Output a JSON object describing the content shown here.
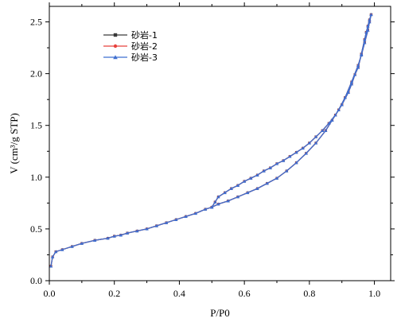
{
  "chart_data": {
    "type": "line",
    "xlabel": "P/P0",
    "ylabel": "V (cm³/g STP)",
    "xlim": [
      0.0,
      1.05
    ],
    "ylim": [
      0.0,
      2.65
    ],
    "xticks": [
      0.0,
      0.2,
      0.4,
      0.6,
      0.8,
      1.0
    ],
    "xtick_labels": [
      "0.0",
      "0.2",
      "0.4",
      "0.6",
      "0.8",
      "1.0"
    ],
    "yticks": [
      0.0,
      0.5,
      1.0,
      1.5,
      2.0,
      2.5
    ],
    "ytick_labels": [
      "0.0",
      "0.5",
      "1.0",
      "1.5",
      "2.0",
      "2.5"
    ],
    "grid": false,
    "legend_position": "top-left",
    "series": [
      {
        "name": "砂岩-1",
        "color": "#3a3a3a",
        "marker": "square",
        "adsorption": {
          "x": [
            0.005,
            0.01,
            0.02,
            0.04,
            0.07,
            0.1,
            0.14,
            0.18,
            0.2,
            0.22,
            0.24,
            0.27,
            0.3,
            0.33,
            0.36,
            0.39,
            0.42,
            0.45,
            0.48,
            0.5,
            0.52,
            0.55,
            0.58,
            0.61,
            0.64,
            0.67,
            0.7,
            0.73,
            0.76,
            0.79,
            0.82,
            0.85,
            0.87,
            0.89,
            0.91,
            0.93,
            0.95,
            0.96,
            0.97,
            0.98,
            0.985,
            0.99
          ],
          "y": [
            0.14,
            0.23,
            0.28,
            0.3,
            0.33,
            0.36,
            0.39,
            0.41,
            0.43,
            0.44,
            0.46,
            0.48,
            0.5,
            0.53,
            0.56,
            0.59,
            0.62,
            0.65,
            0.69,
            0.71,
            0.74,
            0.77,
            0.81,
            0.85,
            0.89,
            0.94,
            0.99,
            1.06,
            1.14,
            1.23,
            1.33,
            1.45,
            1.55,
            1.65,
            1.77,
            1.92,
            2.08,
            2.18,
            2.3,
            2.42,
            2.5,
            2.57
          ]
        },
        "desorption": {
          "x": [
            0.99,
            0.985,
            0.98,
            0.975,
            0.97,
            0.96,
            0.95,
            0.94,
            0.93,
            0.92,
            0.9,
            0.88,
            0.86,
            0.84,
            0.82,
            0.8,
            0.78,
            0.76,
            0.74,
            0.72,
            0.7,
            0.68,
            0.66,
            0.64,
            0.62,
            0.6,
            0.58,
            0.56,
            0.54,
            0.52,
            0.51,
            0.5
          ],
          "y": [
            2.57,
            2.52,
            2.46,
            2.4,
            2.33,
            2.19,
            2.06,
            1.99,
            1.9,
            1.82,
            1.7,
            1.6,
            1.52,
            1.45,
            1.39,
            1.33,
            1.28,
            1.24,
            1.2,
            1.16,
            1.13,
            1.09,
            1.06,
            1.02,
            0.99,
            0.96,
            0.92,
            0.89,
            0.85,
            0.81,
            0.76,
            0.71
          ]
        }
      },
      {
        "name": "砂岩-2",
        "color": "#e8413c",
        "marker": "circle",
        "adsorption": {
          "x": [
            0.005,
            0.01,
            0.02,
            0.04,
            0.07,
            0.1,
            0.14,
            0.18,
            0.2,
            0.22,
            0.24,
            0.27,
            0.3,
            0.33,
            0.36,
            0.39,
            0.42,
            0.45,
            0.48,
            0.5,
            0.52,
            0.55,
            0.58,
            0.61,
            0.64,
            0.67,
            0.7,
            0.73,
            0.76,
            0.79,
            0.82,
            0.85,
            0.87,
            0.89,
            0.91,
            0.93,
            0.95,
            0.96,
            0.97,
            0.98,
            0.985,
            0.99
          ],
          "y": [
            0.14,
            0.23,
            0.28,
            0.3,
            0.33,
            0.36,
            0.39,
            0.41,
            0.43,
            0.44,
            0.46,
            0.48,
            0.5,
            0.53,
            0.56,
            0.59,
            0.62,
            0.65,
            0.69,
            0.71,
            0.74,
            0.77,
            0.81,
            0.85,
            0.89,
            0.94,
            0.99,
            1.06,
            1.14,
            1.23,
            1.33,
            1.45,
            1.55,
            1.65,
            1.77,
            1.92,
            2.08,
            2.18,
            2.3,
            2.42,
            2.5,
            2.57
          ]
        },
        "desorption": {
          "x": [
            0.99,
            0.985,
            0.98,
            0.975,
            0.97,
            0.96,
            0.95,
            0.94,
            0.93,
            0.92,
            0.9,
            0.88,
            0.86,
            0.84,
            0.82,
            0.8,
            0.78,
            0.76,
            0.74,
            0.72,
            0.7,
            0.68,
            0.66,
            0.64,
            0.62,
            0.6,
            0.58,
            0.56,
            0.54,
            0.52,
            0.51,
            0.5
          ],
          "y": [
            2.57,
            2.52,
            2.46,
            2.4,
            2.33,
            2.19,
            2.06,
            1.99,
            1.9,
            1.82,
            1.7,
            1.6,
            1.52,
            1.45,
            1.39,
            1.33,
            1.28,
            1.24,
            1.2,
            1.16,
            1.13,
            1.09,
            1.06,
            1.02,
            0.99,
            0.96,
            0.92,
            0.89,
            0.85,
            0.81,
            0.76,
            0.71
          ]
        }
      },
      {
        "name": "砂岩-3",
        "color": "#3f6fd0",
        "marker": "triangle",
        "adsorption": {
          "x": [
            0.005,
            0.01,
            0.02,
            0.04,
            0.07,
            0.1,
            0.14,
            0.18,
            0.2,
            0.22,
            0.24,
            0.27,
            0.3,
            0.33,
            0.36,
            0.39,
            0.42,
            0.45,
            0.48,
            0.5,
            0.52,
            0.55,
            0.58,
            0.61,
            0.64,
            0.67,
            0.7,
            0.73,
            0.76,
            0.79,
            0.82,
            0.85,
            0.87,
            0.89,
            0.91,
            0.93,
            0.95,
            0.96,
            0.97,
            0.98,
            0.985,
            0.99
          ],
          "y": [
            0.14,
            0.23,
            0.28,
            0.3,
            0.33,
            0.36,
            0.39,
            0.41,
            0.43,
            0.44,
            0.46,
            0.48,
            0.5,
            0.53,
            0.56,
            0.59,
            0.62,
            0.65,
            0.69,
            0.71,
            0.74,
            0.77,
            0.81,
            0.85,
            0.89,
            0.94,
            0.99,
            1.06,
            1.14,
            1.23,
            1.33,
            1.45,
            1.55,
            1.65,
            1.77,
            1.92,
            2.08,
            2.18,
            2.3,
            2.42,
            2.5,
            2.57
          ]
        },
        "desorption": {
          "x": [
            0.99,
            0.985,
            0.98,
            0.975,
            0.97,
            0.96,
            0.95,
            0.94,
            0.93,
            0.92,
            0.9,
            0.88,
            0.86,
            0.84,
            0.82,
            0.8,
            0.78,
            0.76,
            0.74,
            0.72,
            0.7,
            0.68,
            0.66,
            0.64,
            0.62,
            0.6,
            0.58,
            0.56,
            0.54,
            0.52,
            0.51,
            0.5
          ],
          "y": [
            2.57,
            2.52,
            2.46,
            2.4,
            2.33,
            2.19,
            2.06,
            1.99,
            1.9,
            1.82,
            1.7,
            1.6,
            1.52,
            1.45,
            1.39,
            1.33,
            1.28,
            1.24,
            1.2,
            1.16,
            1.13,
            1.09,
            1.06,
            1.02,
            0.99,
            0.96,
            0.92,
            0.89,
            0.85,
            0.81,
            0.76,
            0.71
          ]
        }
      }
    ]
  }
}
